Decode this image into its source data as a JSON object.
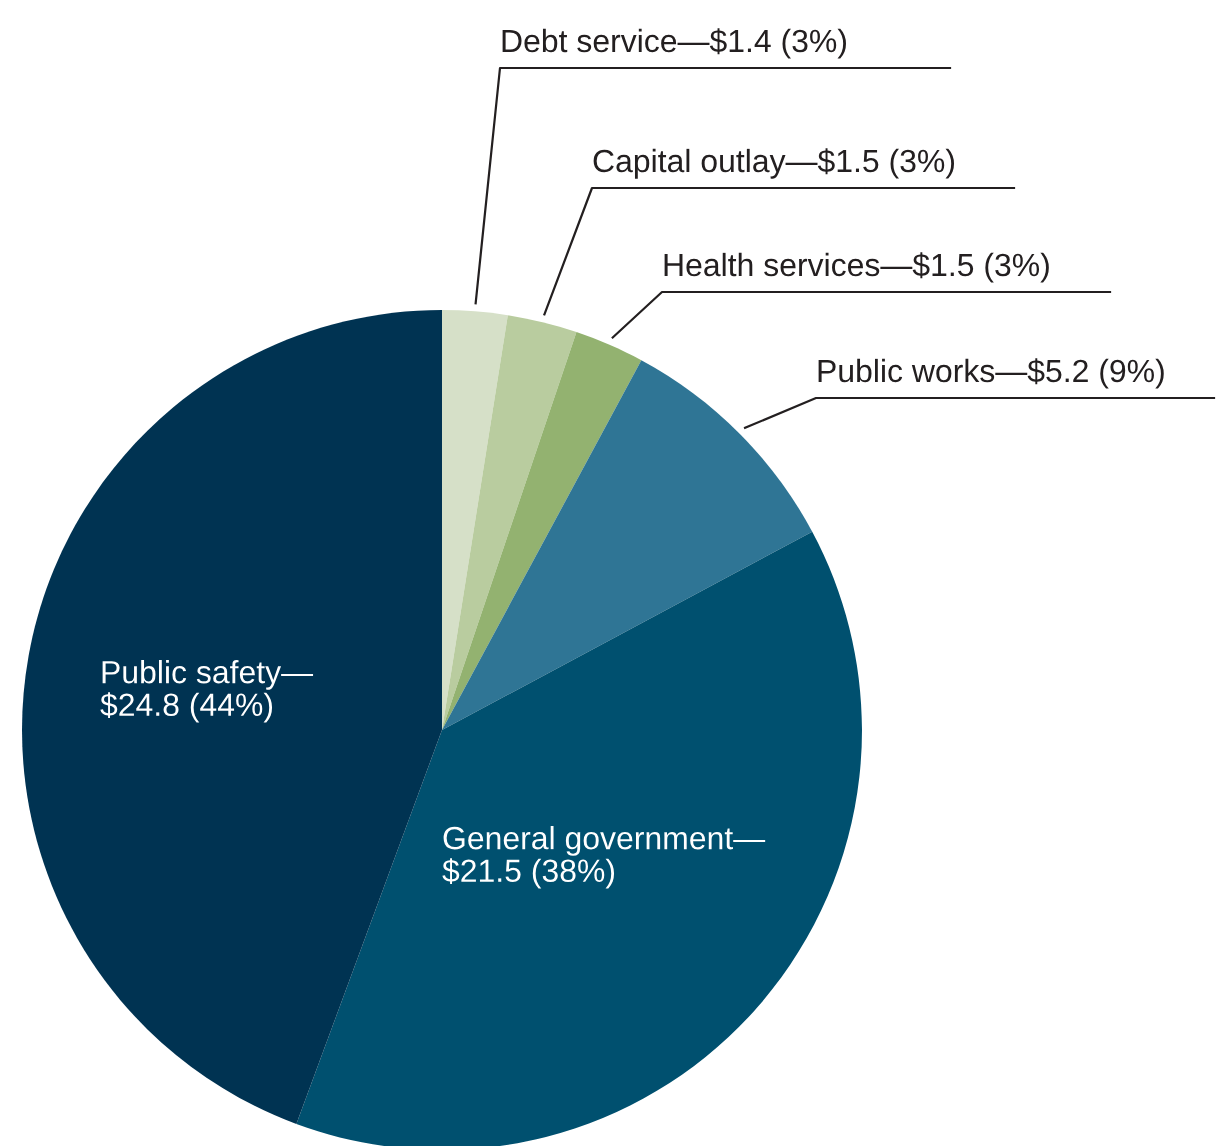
{
  "chart_data": {
    "type": "pie",
    "categories": [
      "Debt service",
      "Capital outlay",
      "Health services",
      "Public works",
      "General government",
      "Public safety"
    ],
    "values": [
      1.4,
      1.5,
      1.5,
      5.2,
      21.5,
      24.8
    ],
    "value_labels": [
      "—$1.4 (3%)",
      "—$1.5 (3%)",
      "—$1.5 (3%)",
      "—$5.2 (9%)",
      "—$21.5 (38%)",
      "—$24.8 (44%)"
    ],
    "colors": [
      "#d6e0c8",
      "#b9cc9f",
      "#93b270",
      "#2f7595",
      "#00506f",
      "#003352"
    ]
  }
}
